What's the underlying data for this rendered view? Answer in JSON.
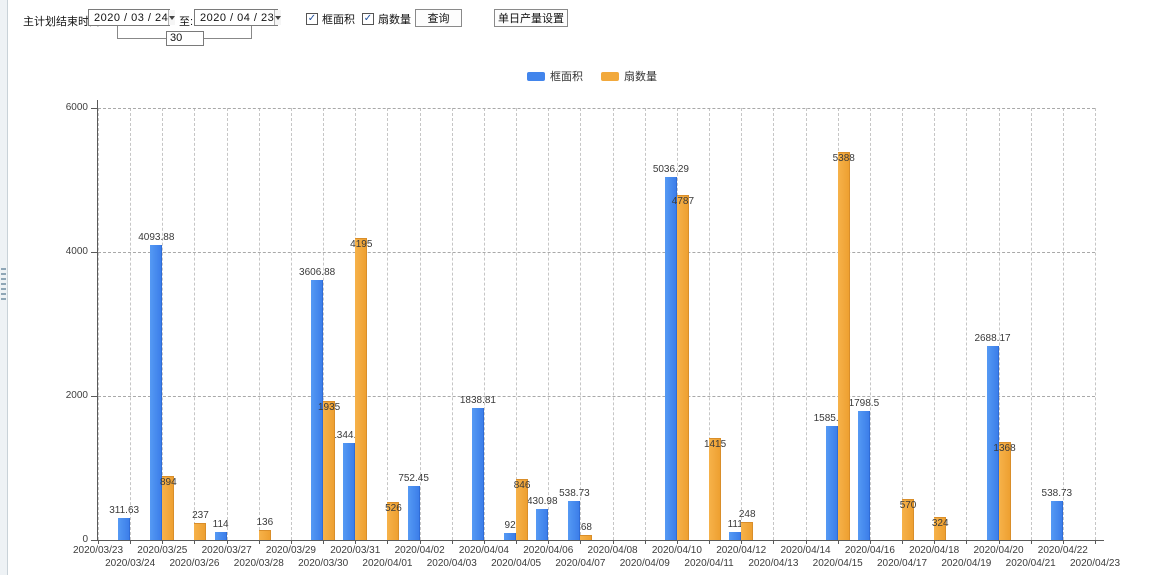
{
  "toolbar": {
    "range_label": "主计划结束时间:",
    "date_from": "2020 / 03 / 24",
    "to_label": "至:",
    "date_to": "2020 / 04 / 23",
    "interval_days": "30",
    "checkbox_frame_area": "框面积",
    "checkbox_fan_count": "扇数量",
    "query_button": "查询",
    "daily_output_button": "单日产量设置"
  },
  "legend": [
    {
      "label": "框面积",
      "color": "#4285ec"
    },
    {
      "label": "扇数量",
      "color": "#f2a93c"
    }
  ],
  "chart_data": {
    "type": "bar",
    "title": "",
    "xlabel": "",
    "ylabel": "",
    "ylim": [
      0,
      6000
    ],
    "yticks": [
      0,
      2000,
      4000,
      6000
    ],
    "grid": "dashed",
    "legend_position": "top-center",
    "categories": [
      "2020/03/23",
      "2020/03/24",
      "2020/03/25",
      "2020/03/26",
      "2020/03/27",
      "2020/03/28",
      "2020/03/29",
      "2020/03/30",
      "2020/03/31",
      "2020/04/01",
      "2020/04/02",
      "2020/04/03",
      "2020/04/04",
      "2020/04/05",
      "2020/04/06",
      "2020/04/07",
      "2020/04/08",
      "2020/04/09",
      "2020/04/10",
      "2020/04/11",
      "2020/04/12",
      "2020/04/13",
      "2020/04/14",
      "2020/04/15",
      "2020/04/16",
      "2020/04/17",
      "2020/04/18",
      "2020/04/19",
      "2020/04/20",
      "2020/04/21",
      "2020/04/22",
      "2020/04/23"
    ],
    "series": [
      {
        "name": "框面积",
        "color": "#4285ec",
        "values": [
          null,
          311.63,
          4093.88,
          null,
          114,
          null,
          null,
          3606.88,
          1344.95,
          null,
          752.45,
          null,
          1838.81,
          92,
          430.98,
          538.73,
          null,
          null,
          5036.29,
          null,
          111,
          null,
          null,
          1585.96,
          1798.5,
          null,
          null,
          null,
          2688.17,
          null,
          538.73,
          null
        ]
      },
      {
        "name": "扇数量",
        "color": "#f2a93c",
        "values": [
          null,
          null,
          894,
          237,
          null,
          136,
          null,
          1935,
          4195,
          526,
          null,
          null,
          null,
          846,
          null,
          68,
          null,
          null,
          4787,
          1415,
          248,
          null,
          null,
          5388,
          null,
          570,
          324,
          null,
          1368,
          null,
          null,
          null
        ]
      }
    ]
  }
}
